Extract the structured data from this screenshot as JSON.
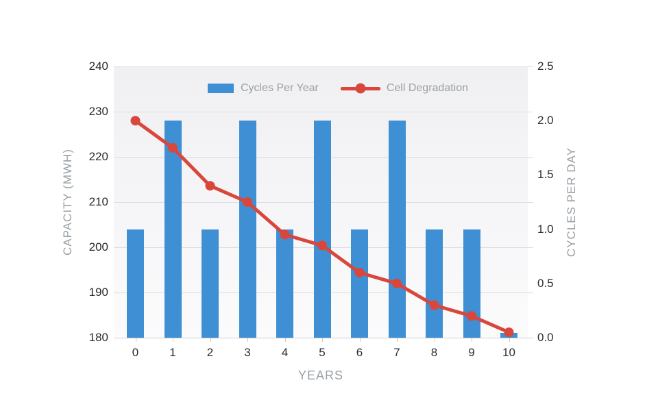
{
  "chart_data": {
    "type": "bar+line combo, dual y-axis",
    "title": "",
    "categories": [
      "0",
      "1",
      "2",
      "3",
      "4",
      "5",
      "6",
      "7",
      "8",
      "9",
      "10"
    ],
    "xlabel": "YEARS",
    "series": [
      {
        "name": "Cycles Per Year",
        "type": "bar",
        "axis": "left",
        "color": "#3e8fd3",
        "values": [
          204,
          228,
          204,
          228,
          204,
          228,
          204,
          228,
          204,
          204,
          181
        ]
      },
      {
        "name": "Cell Degradation",
        "type": "line",
        "axis": "right",
        "color": "#d9473c",
        "values": [
          2.0,
          1.75,
          1.4,
          1.25,
          0.95,
          0.85,
          0.6,
          0.5,
          0.3,
          0.2,
          0.05
        ]
      }
    ],
    "left_axis": {
      "label": "CAPACITY (MWH)",
      "min": 180,
      "max": 240,
      "ticks": [
        "240",
        "230",
        "220",
        "210",
        "200",
        "190",
        "180"
      ]
    },
    "right_axis": {
      "label": "CYCLES PER DAY",
      "min": 0.0,
      "max": 2.5,
      "ticks": [
        "2.5",
        "2.0",
        "1.5",
        "1.0",
        "0.5",
        "0.0"
      ]
    },
    "legend": {
      "position": "top-center",
      "entries": [
        "Cycles Per Year",
        "Cell Degradation"
      ]
    },
    "grid": true,
    "styles": {
      "grid_color": "#dcdce0",
      "axis_line_color": "#cfcfd3",
      "tick_text_color": "#2d2d2d",
      "muted_text_color": "#9aa0a5",
      "plot_bg_top": "#f0f0f2",
      "plot_bg_bottom": "#fbfbfc",
      "background": "#ffffff"
    }
  }
}
